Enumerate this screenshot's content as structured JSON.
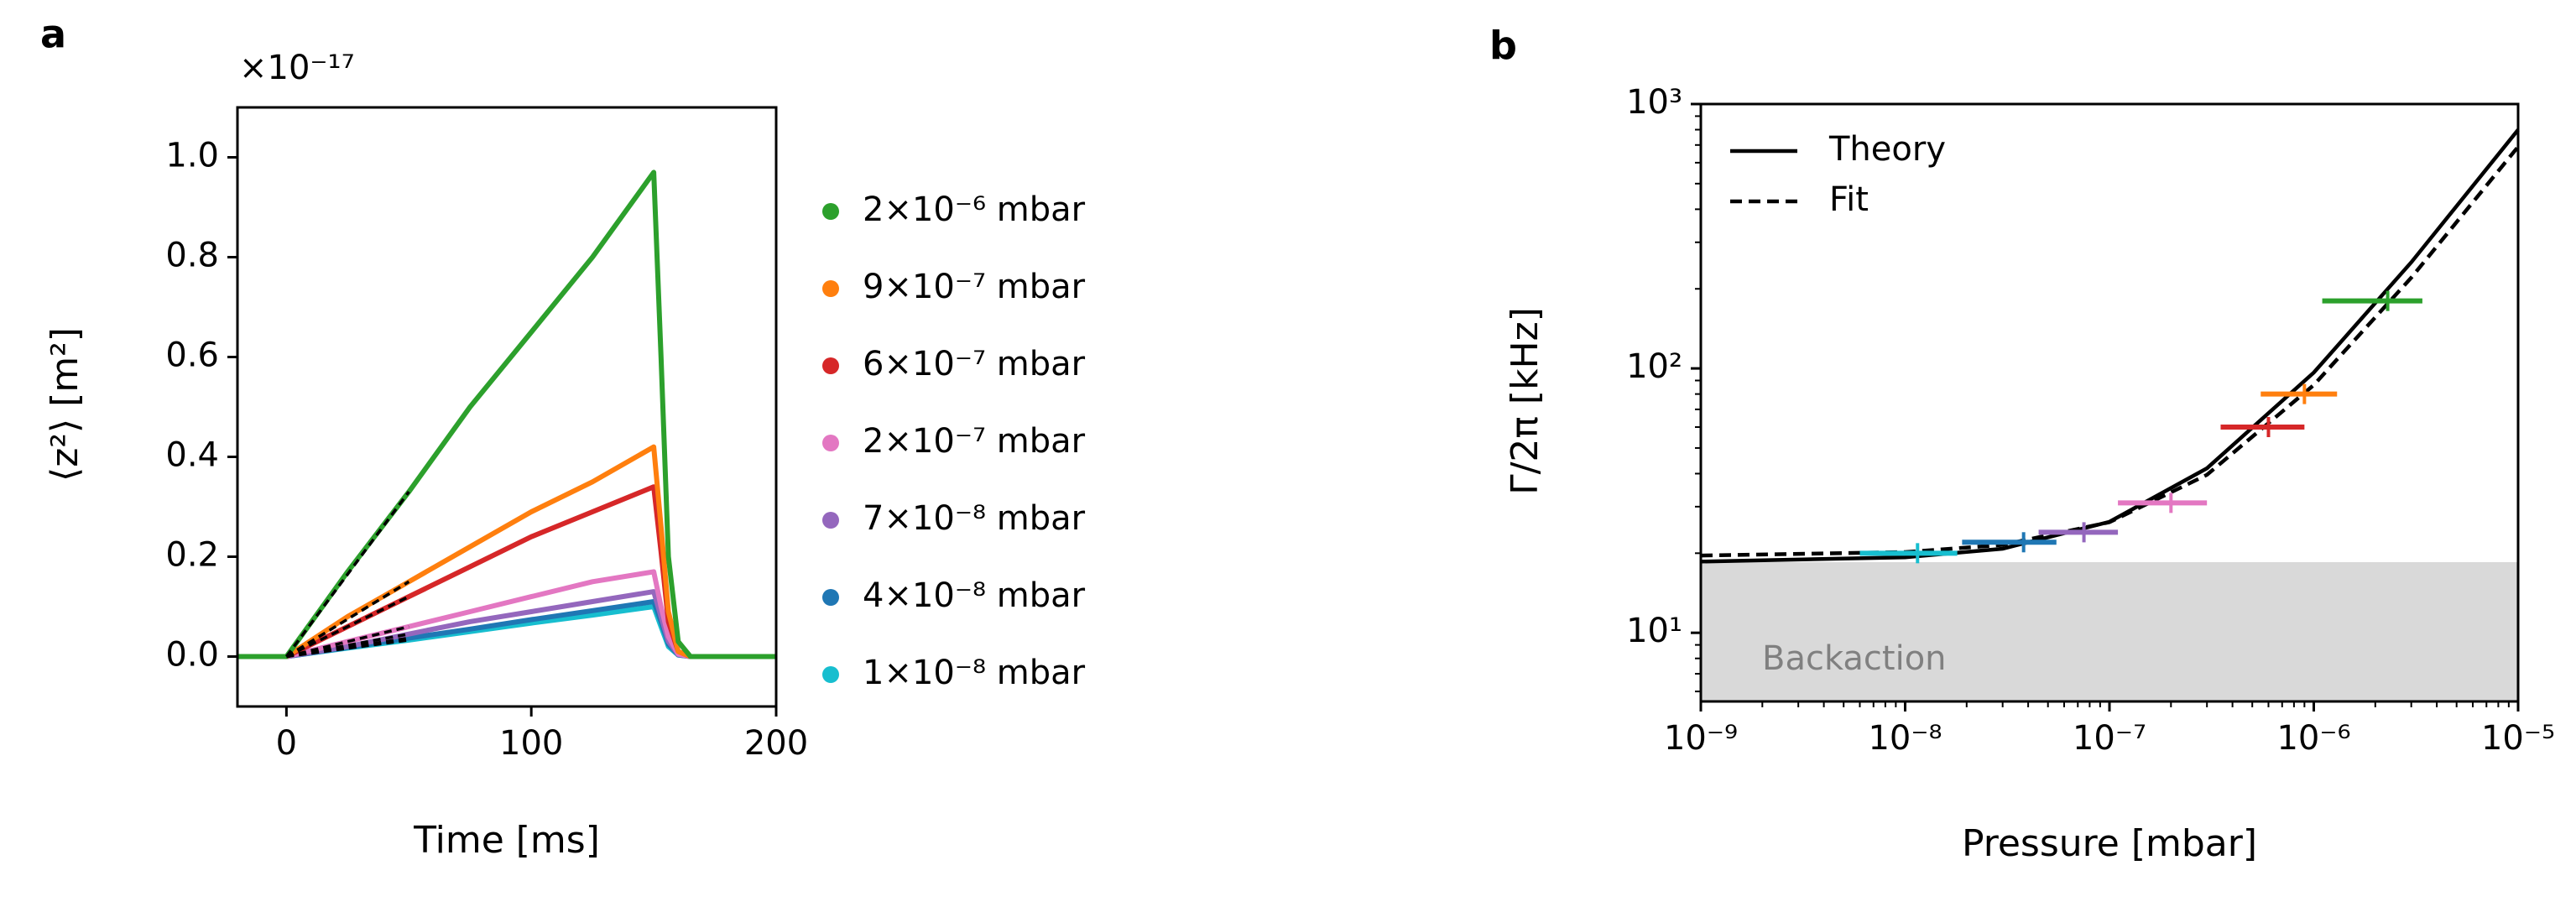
{
  "chart_data": [
    {
      "type": "line",
      "panel": "a",
      "offset_label": "×10⁻¹⁷",
      "x_label": "Time [ms]",
      "y_label": "⟨z²⟩ [m²]",
      "xlim": [
        -20,
        200
      ],
      "xticks": [
        0,
        100,
        200
      ],
      "ylim": [
        -0.1,
        1.1
      ],
      "yticks": [
        {
          "value": 0,
          "label": "0.0"
        },
        0.2,
        0.4,
        0.6,
        0.8,
        {
          "value": 1,
          "label": "1.0"
        }
      ],
      "x": [
        -20,
        0,
        25,
        50,
        75,
        100,
        125,
        150,
        153,
        156,
        160,
        165,
        200
      ],
      "fit_x": [
        0,
        50
      ],
      "series": [
        {
          "name": "2×10⁻⁶ mbar",
          "color": "#2ca02c",
          "values": [
            0,
            0,
            0.17,
            0.33,
            0.5,
            0.65,
            0.8,
            0.97,
            0.6,
            0.2,
            0.03,
            0,
            0
          ],
          "fit": [
            0,
            0.33
          ]
        },
        {
          "name": "9×10⁻⁷ mbar",
          "color": "#ff7f0e",
          "values": [
            0,
            0,
            0.08,
            0.15,
            0.22,
            0.29,
            0.35,
            0.42,
            0.26,
            0.09,
            0.01,
            0,
            0
          ],
          "fit": [
            0,
            0.15
          ]
        },
        {
          "name": "6×10⁻⁷ mbar",
          "color": "#d62728",
          "values": [
            0,
            0,
            0.06,
            0.12,
            0.18,
            0.24,
            0.29,
            0.34,
            0.21,
            0.07,
            0.01,
            0,
            0
          ],
          "fit": [
            0,
            0.12
          ]
        },
        {
          "name": "2×10⁻⁷ mbar",
          "color": "#e377c2",
          "values": [
            0,
            0,
            0.03,
            0.06,
            0.09,
            0.12,
            0.15,
            0.17,
            0.1,
            0.04,
            0.005,
            0,
            0
          ],
          "fit": [
            0,
            0.06
          ]
        },
        {
          "name": "7×10⁻⁸ mbar",
          "color": "#9467bd",
          "values": [
            0,
            0,
            0.02,
            0.045,
            0.07,
            0.09,
            0.11,
            0.13,
            0.08,
            0.03,
            0.004,
            0,
            0
          ],
          "fit": [
            0,
            0.045
          ]
        },
        {
          "name": "4×10⁻⁸ mbar",
          "color": "#1f77b4",
          "values": [
            0,
            0,
            0.018,
            0.037,
            0.055,
            0.074,
            0.092,
            0.11,
            0.07,
            0.025,
            0.003,
            0,
            0
          ],
          "fit": [
            0,
            0.037
          ]
        },
        {
          "name": "1×10⁻⁸ mbar",
          "color": "#17becf",
          "values": [
            0,
            0,
            0.017,
            0.033,
            0.05,
            0.067,
            0.083,
            0.1,
            0.06,
            0.02,
            0.003,
            0,
            0
          ],
          "fit": [
            0,
            0.033
          ]
        }
      ]
    },
    {
      "type": "scatter",
      "panel": "b",
      "log_x": true,
      "log_y": true,
      "minor_ticks": true,
      "x_label": "Pressure [mbar]",
      "y_label": "Γ/2π [kHz]",
      "xlim": [
        1e-09,
        1e-05
      ],
      "xticks": [
        {
          "value": 1e-09,
          "label": "10⁻⁹"
        },
        {
          "value": 1e-08,
          "label": "10⁻⁸"
        },
        {
          "value": 1e-07,
          "label": "10⁻⁷"
        },
        {
          "value": 1e-06,
          "label": "10⁻⁶"
        },
        {
          "value": 1e-05,
          "label": "10⁻⁵"
        }
      ],
      "ylim": [
        5.5,
        1000
      ],
      "yticks": [
        {
          "value": 10,
          "label": "10¹"
        },
        {
          "value": 100,
          "label": "10²"
        },
        {
          "value": 1000,
          "label": "10³"
        }
      ],
      "legend": "upper left",
      "backaction": {
        "label": "Backaction",
        "ymax": 18.5,
        "color": "#d9d9d9"
      },
      "lines": [
        {
          "name": "Theory",
          "style": "solid",
          "x": [
            1e-09,
            1e-08,
            3e-08,
            1e-07,
            3e-07,
            1e-06,
            3e-06,
            1e-05
          ],
          "values": [
            18.6,
            19.3,
            20.8,
            26.3,
            41.9,
            96.5,
            252,
            799
          ]
        },
        {
          "name": "Fit",
          "style": "dashed",
          "x": [
            1e-09,
            1e-08,
            3e-08,
            1e-07,
            3e-07,
            1e-06,
            3e-06,
            1e-05
          ],
          "values": [
            19.6,
            20.2,
            21.5,
            26.2,
            39.6,
            86.5,
            220.5,
            689.5
          ]
        }
      ],
      "points": [
        {
          "color": "#2ca02c",
          "x": 2.3e-06,
          "y": 180,
          "x_low": 1.1e-06,
          "x_high": 3.4e-06
        },
        {
          "color": "#ff7f0e",
          "x": 9e-07,
          "y": 80,
          "x_low": 5.5e-07,
          "x_high": 1.3e-06
        },
        {
          "color": "#d62728",
          "x": 6e-07,
          "y": 60,
          "x_low": 3.5e-07,
          "x_high": 9e-07
        },
        {
          "color": "#e377c2",
          "x": 2e-07,
          "y": 31,
          "x_low": 1.1e-07,
          "x_high": 3e-07
        },
        {
          "color": "#9467bd",
          "x": 7.5e-08,
          "y": 24,
          "x_low": 4.5e-08,
          "x_high": 1.1e-07
        },
        {
          "color": "#1f77b4",
          "x": 3.8e-08,
          "y": 22,
          "x_low": 1.9e-08,
          "x_high": 5.5e-08
        },
        {
          "color": "#17becf",
          "x": 1.15e-08,
          "y": 20,
          "x_low": 6e-09,
          "x_high": 1.8e-08
        }
      ]
    }
  ]
}
